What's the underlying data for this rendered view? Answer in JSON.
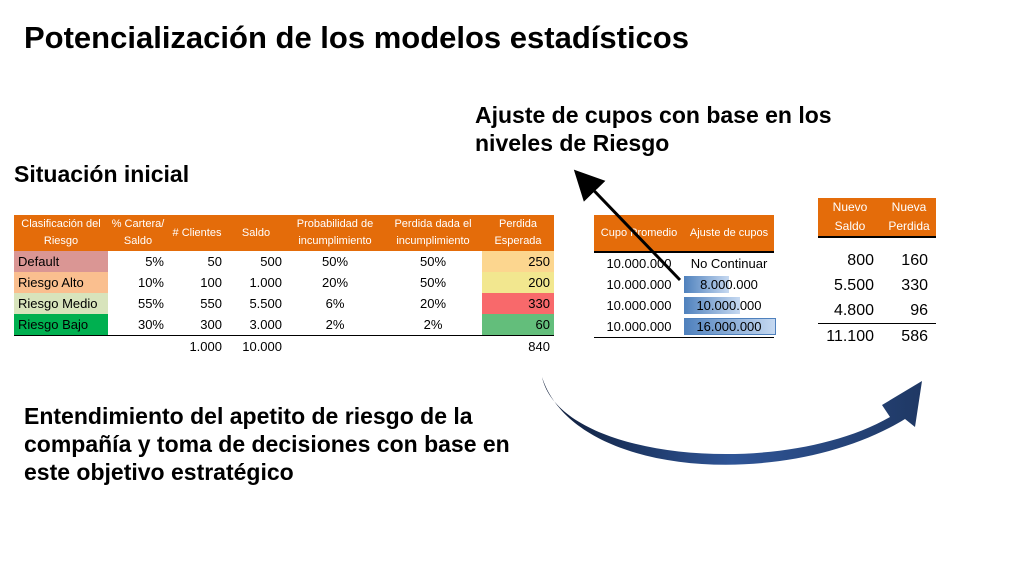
{
  "title": "Potencialización de los modelos estadísticos",
  "situacion": "Situación inicial",
  "ajuste": "Ajuste de cupos con base en los niveles de Riesgo",
  "entendimiento": "Entendimiento del apetito de riesgo de la compañía y toma de decisiones con base en este objetivo estratégico",
  "table1": {
    "headers": [
      "Clasificación del Riesgo",
      "% Cartera/ Saldo",
      "# Clientes",
      "Saldo",
      "Probabilidad de incumplimiento",
      "Perdida dada el incumplimiento",
      "Perdida Esperada"
    ],
    "rows": [
      {
        "label": "Default",
        "cartera": "5%",
        "clientes": "50",
        "saldo": "500",
        "prob": "50%",
        "perdida_dada": "50%",
        "perdida": "250",
        "label_color": "#da9694",
        "perdida_color": "#fcd68f"
      },
      {
        "label": "Riesgo Alto",
        "cartera": "10%",
        "clientes": "100",
        "saldo": "1.000",
        "prob": "20%",
        "perdida_dada": "50%",
        "perdida": "200",
        "label_color": "#fabf8f",
        "perdida_color": "#f2e78f"
      },
      {
        "label": "Riesgo Medio",
        "cartera": "55%",
        "clientes": "550",
        "saldo": "5.500",
        "prob": "6%",
        "perdida_dada": "20%",
        "perdida": "330",
        "label_color": "#d8e4bc",
        "perdida_color": "#f8696b"
      },
      {
        "label": "Riesgo Bajo",
        "cartera": "30%",
        "clientes": "300",
        "saldo": "3.000",
        "prob": "2%",
        "perdida_dada": "2%",
        "perdida": "60",
        "label_color": "#00b050",
        "perdida_color": "#63be7b"
      }
    ],
    "totals": {
      "clientes": "1.000",
      "saldo": "10.000",
      "perdida": "840"
    }
  },
  "table2": {
    "headers": [
      "Cupo Promedio",
      "Ajuste de cupos"
    ],
    "rows": [
      {
        "cupo": "10.000.000",
        "ajuste": "No Continuar",
        "bar": 0
      },
      {
        "cupo": "10.000.000",
        "ajuste": "8.000.000",
        "bar": 0.5
      },
      {
        "cupo": "10.000.000",
        "ajuste": "10.000.000",
        "bar": 0.625
      },
      {
        "cupo": "10.000.000",
        "ajuste": "16.000.000",
        "bar": 1.0
      }
    ]
  },
  "table3": {
    "headers": [
      "Nuevo Saldo",
      "Nueva Perdida"
    ],
    "rows": [
      {
        "saldo": "800",
        "perdida": "160"
      },
      {
        "saldo": "5.500",
        "perdida": "330"
      },
      {
        "saldo": "4.800",
        "perdida": "96"
      }
    ],
    "totals": {
      "saldo": "11.100",
      "perdida": "586"
    }
  },
  "colors": {
    "header": "#e46c0a",
    "arrow": "#1f3864"
  }
}
